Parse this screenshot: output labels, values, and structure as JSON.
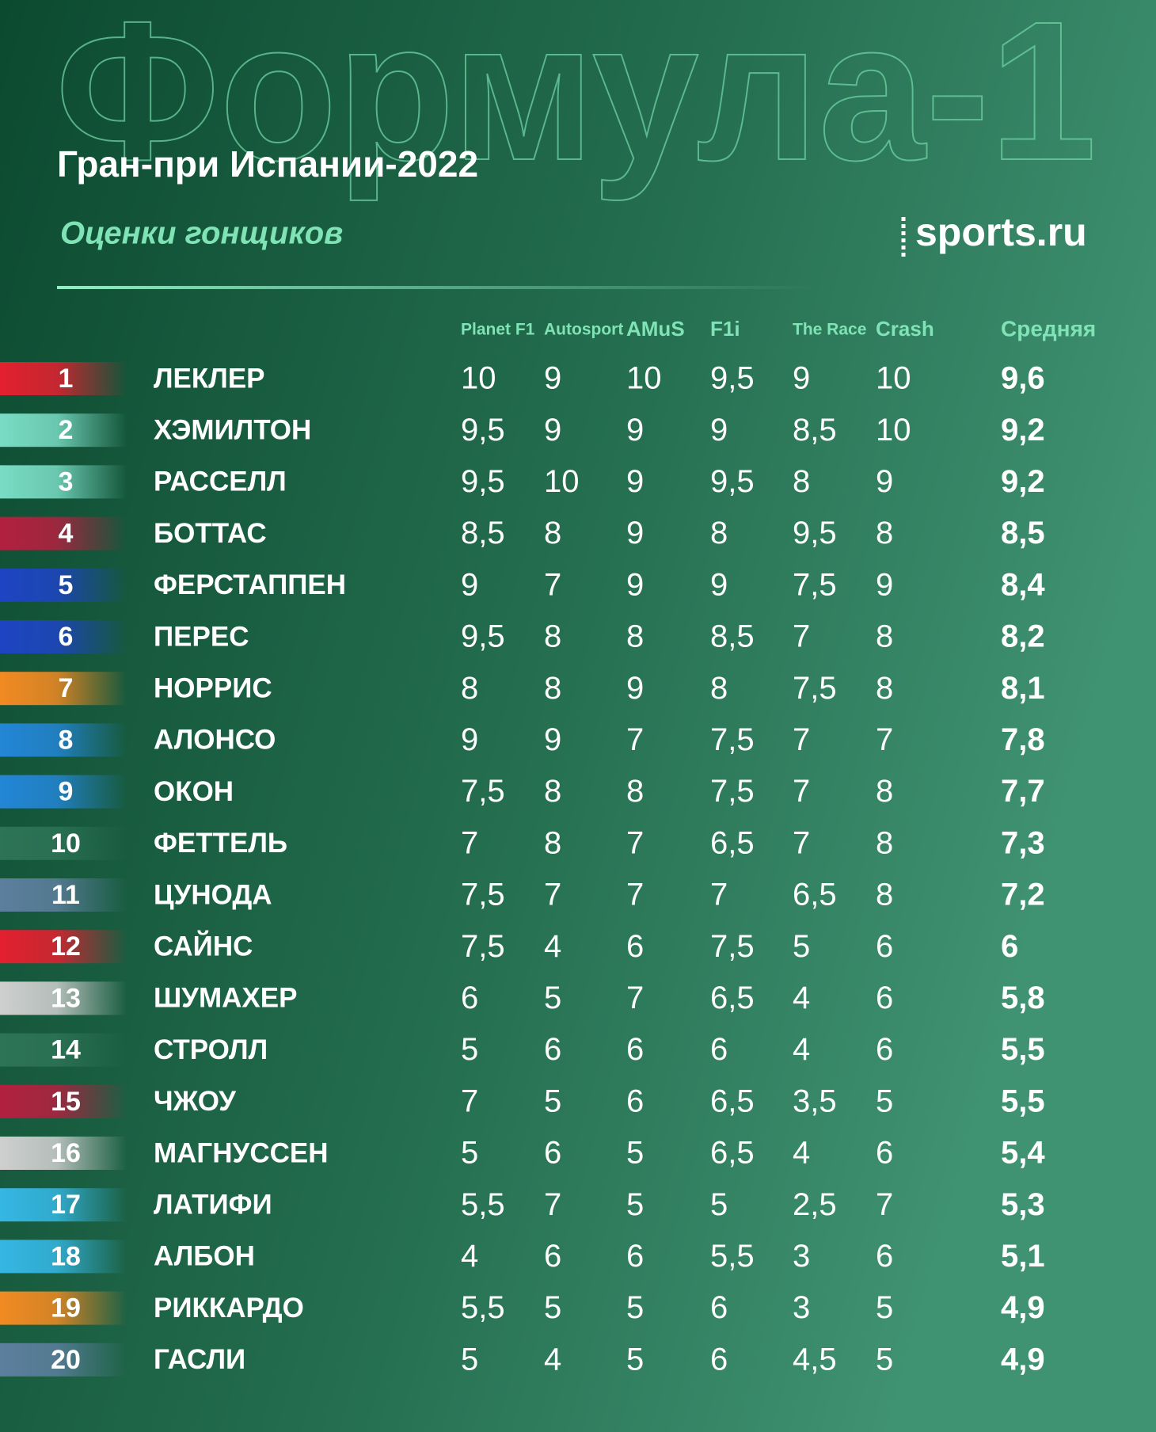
{
  "header": {
    "background_title": "Формула-1",
    "title": "Гран-при Испании-2022",
    "subtitle": "Оценки гонщиков",
    "logo": "sports.ru"
  },
  "table": {
    "columns": [
      "Planet F1",
      "Autosport",
      "AMuS",
      "F1i",
      "The Race",
      "Crash",
      "Средняя"
    ],
    "rows": [
      {
        "position": 1,
        "name": "ЛЕКЛЕР",
        "color": "#e3202f",
        "scores": [
          "10",
          "9",
          "10",
          "9,5",
          "9",
          "10"
        ],
        "average": "9,6"
      },
      {
        "position": 2,
        "name": "ХЭМИЛТОН",
        "color": "#79dcc4",
        "scores": [
          "9,5",
          "9",
          "9",
          "9",
          "8,5",
          "10"
        ],
        "average": "9,2"
      },
      {
        "position": 3,
        "name": "РАССЕЛЛ",
        "color": "#79dcc4",
        "scores": [
          "9,5",
          "10",
          "9",
          "9,5",
          "8",
          "9"
        ],
        "average": "9,2"
      },
      {
        "position": 4,
        "name": "БОТТАС",
        "color": "#b3203f",
        "scores": [
          "8,5",
          "8",
          "9",
          "8",
          "9,5",
          "8"
        ],
        "average": "8,5"
      },
      {
        "position": 5,
        "name": "ФЕРСТАППЕН",
        "color": "#1e44c4",
        "scores": [
          "9",
          "7",
          "9",
          "9",
          "7,5",
          "9"
        ],
        "average": "8,4"
      },
      {
        "position": 6,
        "name": "ПЕРЕС",
        "color": "#1e44c4",
        "scores": [
          "9,5",
          "8",
          "8",
          "8,5",
          "7",
          "8"
        ],
        "average": "8,2"
      },
      {
        "position": 7,
        "name": "НОРРИС",
        "color": "#f28a22",
        "scores": [
          "8",
          "8",
          "9",
          "8",
          "7,5",
          "8"
        ],
        "average": "8,1"
      },
      {
        "position": 8,
        "name": "АЛОНСО",
        "color": "#2386d6",
        "scores": [
          "9",
          "9",
          "7",
          "7,5",
          "7",
          "7"
        ],
        "average": "7,8"
      },
      {
        "position": 9,
        "name": "ОКОН",
        "color": "#2386d6",
        "scores": [
          "7,5",
          "8",
          "8",
          "7,5",
          "7",
          "8"
        ],
        "average": "7,7"
      },
      {
        "position": 10,
        "name": "ФЕТТЕЛЬ",
        "color": "#2d7356",
        "scores": [
          "7",
          "8",
          "7",
          "6,5",
          "7",
          "8"
        ],
        "average": "7,3"
      },
      {
        "position": 11,
        "name": "ЦУНОДА",
        "color": "#5d7f9e",
        "scores": [
          "7,5",
          "7",
          "7",
          "7",
          "6,5",
          "8"
        ],
        "average": "7,2"
      },
      {
        "position": 12,
        "name": "САЙНС",
        "color": "#e3202f",
        "scores": [
          "7,5",
          "4",
          "6",
          "7,5",
          "5",
          "6"
        ],
        "average": "6"
      },
      {
        "position": 13,
        "name": "ШУМАХЕР",
        "color": "#cfcfcf",
        "scores": [
          "6",
          "5",
          "7",
          "6,5",
          "4",
          "6"
        ],
        "average": "5,8"
      },
      {
        "position": 14,
        "name": "СТРОЛЛ",
        "color": "#2d7356",
        "scores": [
          "5",
          "6",
          "6",
          "6",
          "4",
          "6"
        ],
        "average": "5,5"
      },
      {
        "position": 15,
        "name": "ЧЖОУ",
        "color": "#b3203f",
        "scores": [
          "7",
          "5",
          "6",
          "6,5",
          "3,5",
          "5"
        ],
        "average": "5,5"
      },
      {
        "position": 16,
        "name": "МАГНУССЕН",
        "color": "#cfcfcf",
        "scores": [
          "5",
          "6",
          "5",
          "6,5",
          "4",
          "6"
        ],
        "average": "5,4"
      },
      {
        "position": 17,
        "name": "ЛАТИФИ",
        "color": "#35b7e4",
        "scores": [
          "5,5",
          "7",
          "5",
          "5",
          "2,5",
          "7"
        ],
        "average": "5,3"
      },
      {
        "position": 18,
        "name": "АЛБОН",
        "color": "#35b7e4",
        "scores": [
          "4",
          "6",
          "6",
          "5,5",
          "3",
          "6"
        ],
        "average": "5,1"
      },
      {
        "position": 19,
        "name": "РИККАРДО",
        "color": "#f28a22",
        "scores": [
          "5,5",
          "5",
          "5",
          "6",
          "3",
          "5"
        ],
        "average": "4,9"
      },
      {
        "position": 20,
        "name": "ГАСЛИ",
        "color": "#5d7f9e",
        "scores": [
          "5",
          "4",
          "5",
          "6",
          "4,5",
          "5"
        ],
        "average": "4,9"
      }
    ]
  }
}
